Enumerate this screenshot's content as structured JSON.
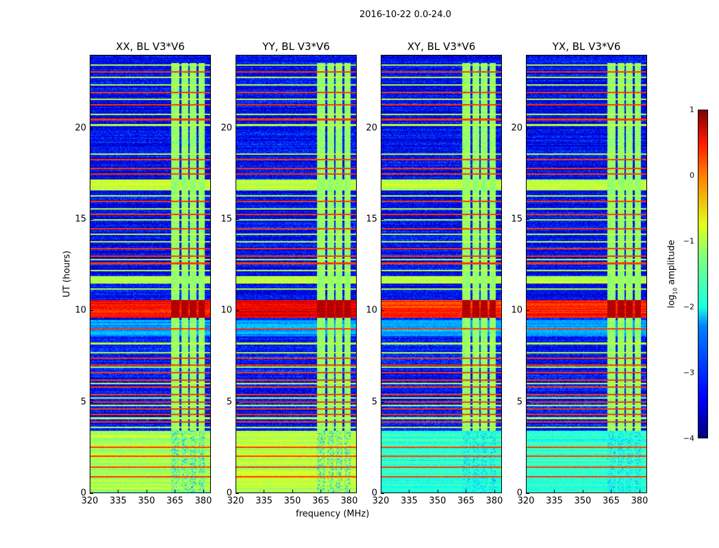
{
  "figure_title": "2016-10-22 0.0-24.0",
  "chart_data": {
    "type": "heatmap",
    "title": "2016-10-22 0.0-24.0",
    "xlabel": "frequency (MHz)",
    "ylabel": "UT (hours)",
    "xlim": [
      320,
      384
    ],
    "ylim": [
      0,
      24
    ],
    "xticks": [
      320,
      335,
      350,
      365,
      380
    ],
    "yticks": [
      0,
      5,
      10,
      15,
      20
    ],
    "colormap": "jet",
    "colorbar": {
      "label": "log10 amplitude",
      "label_main": "log",
      "label_sub": "10",
      "label_tail": " amplitude",
      "vmin": -4,
      "vmax": 1,
      "ticks": [
        1,
        0,
        -1,
        -2,
        -3,
        -4
      ],
      "tick_labels": [
        "1",
        "0",
        "−1",
        "−2",
        "−3",
        "−4"
      ]
    },
    "panels": [
      {
        "title": "XX, BL V3*V6",
        "low_band_level": -1.3,
        "rfi_10h_level": 0.3
      },
      {
        "title": "YY, BL V3*V6",
        "low_band_level": -1.2,
        "rfi_10h_level": 0.5
      },
      {
        "title": "XY, BL V3*V6",
        "low_band_level": -1.9,
        "rfi_10h_level": 0.1
      },
      {
        "title": "YX, BL V3*V6",
        "low_band_level": -1.9,
        "rfi_10h_level": 0.2
      }
    ],
    "time_bands": [
      {
        "from": 0,
        "to": 3.4,
        "level": "low_band"
      },
      {
        "from": 3.4,
        "to": 8.6,
        "level": -3.3
      },
      {
        "from": 8.6,
        "to": 9.5,
        "level": -2.6
      },
      {
        "from": 9.6,
        "to": 10.6,
        "level": "rfi_10h"
      },
      {
        "from": 10.6,
        "to": 11.5,
        "level": -3.4
      },
      {
        "from": 11.5,
        "to": 11.9,
        "level": -1.2
      },
      {
        "from": 11.9,
        "to": 16.6,
        "level": -3.4
      },
      {
        "from": 16.6,
        "to": 17.2,
        "level": -1.2
      },
      {
        "from": 17.2,
        "to": 24,
        "level": -3.4
      }
    ],
    "strong_lines_hours": [
      0.9,
      1.4,
      2.0,
      2.5,
      3.9,
      4.3,
      4.6,
      5.0,
      5.4,
      5.8,
      6.2,
      6.6,
      7.0,
      7.4,
      9.0,
      12.6,
      13.0,
      13.4,
      14.5,
      15.3,
      16.0,
      17.5,
      17.8,
      18.3,
      20.5,
      21.3,
      22.0,
      23.1
    ],
    "weak_lines_hours": [
      3.6,
      4.1,
      4.8,
      5.2,
      6.0,
      6.9,
      7.7,
      8.2,
      11.2,
      12.2,
      12.8,
      13.8,
      14.2,
      15.0,
      15.6,
      16.3,
      18.6,
      20.2,
      20.8,
      21.6,
      22.4,
      22.8,
      23.5
    ],
    "rfi_columns_mhz": [
      [
        363,
        367.5
      ],
      [
        368.5,
        372
      ],
      [
        373,
        376.5
      ],
      [
        377.5,
        381
      ]
    ],
    "rfi_column_level": -1.4
  }
}
